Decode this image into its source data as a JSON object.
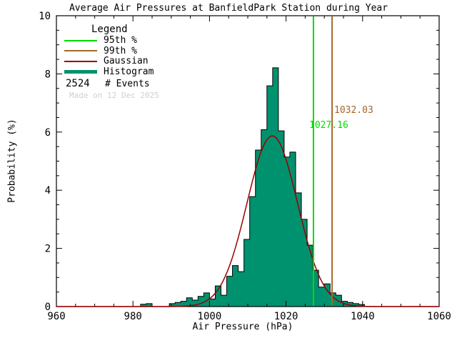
{
  "title": "Average Air Pressures at BanfieldPark Station during Year",
  "made_on": "Made on 12 Dec 2025",
  "legend": {
    "title": "Legend",
    "items": [
      {
        "label": "95th %",
        "color": "#00DD00"
      },
      {
        "label": "99th %",
        "color": "#A3682A"
      },
      {
        "label": "Gaussian",
        "color": "#990000"
      },
      {
        "label": "Histogram",
        "color": "#00916E"
      }
    ],
    "events_count": "2524",
    "events_label": "# Events"
  },
  "chart_data": {
    "type": "bar",
    "subtype": "histogram-with-gaussian-fit",
    "title": "Average Air Pressures at BanfieldPark Station during Year",
    "xlabel": "Air Pressure (hPa)",
    "ylabel": "Probability (%)",
    "xlim": [
      960,
      1060
    ],
    "ylim": [
      0,
      10
    ],
    "x_major_ticks": [
      960,
      980,
      1000,
      1020,
      1040,
      1060
    ],
    "x_minor_step": 5,
    "y_major_ticks": [
      0,
      2,
      4,
      6,
      8,
      10
    ],
    "y_minor_step": 0.5,
    "grid": false,
    "legend_position": "top-left",
    "n_events": 2524,
    "bin_width_hpa": 1.5,
    "bin_centers": [
      982.75,
      984.25,
      985.75,
      987.25,
      988.75,
      990.25,
      991.75,
      993.25,
      994.75,
      996.25,
      997.75,
      999.25,
      1000.75,
      1002.25,
      1003.75,
      1005.25,
      1006.75,
      1008.25,
      1009.75,
      1011.25,
      1012.75,
      1014.25,
      1015.75,
      1017.25,
      1018.75,
      1020.25,
      1021.75,
      1023.25,
      1024.75,
      1026.25,
      1027.75,
      1029.25,
      1030.75,
      1032.25,
      1033.75,
      1035.25,
      1036.75,
      1038.25,
      1039.75
    ],
    "values": [
      0.08,
      0.1,
      0,
      0,
      0,
      0.1,
      0.14,
      0.18,
      0.3,
      0.22,
      0.35,
      0.47,
      0.26,
      0.71,
      0.39,
      1.04,
      1.41,
      1.2,
      2.31,
      3.78,
      5.38,
      6.08,
      7.59,
      8.21,
      6.04,
      5.14,
      5.31,
      3.91,
      3.0,
      2.11,
      1.25,
      0.67,
      0.78,
      0.47,
      0.39,
      0.18,
      0.14,
      0.1,
      0.07
    ],
    "gaussian_fit": {
      "mean": 1016.4,
      "sigma": 6.6,
      "peak_percent": 5.87
    },
    "percentiles": {
      "p95": {
        "value": 1027.16,
        "label": "1027.16",
        "color": "#00DD00"
      },
      "p99": {
        "value": 1032.03,
        "label": "1032.03",
        "color": "#A3682A"
      }
    },
    "colors": {
      "histogram_fill": "#00916E",
      "histogram_outline": "#000000",
      "gaussian": "#990000",
      "axis": "#000000",
      "made_on": "#CFCFCF"
    }
  }
}
